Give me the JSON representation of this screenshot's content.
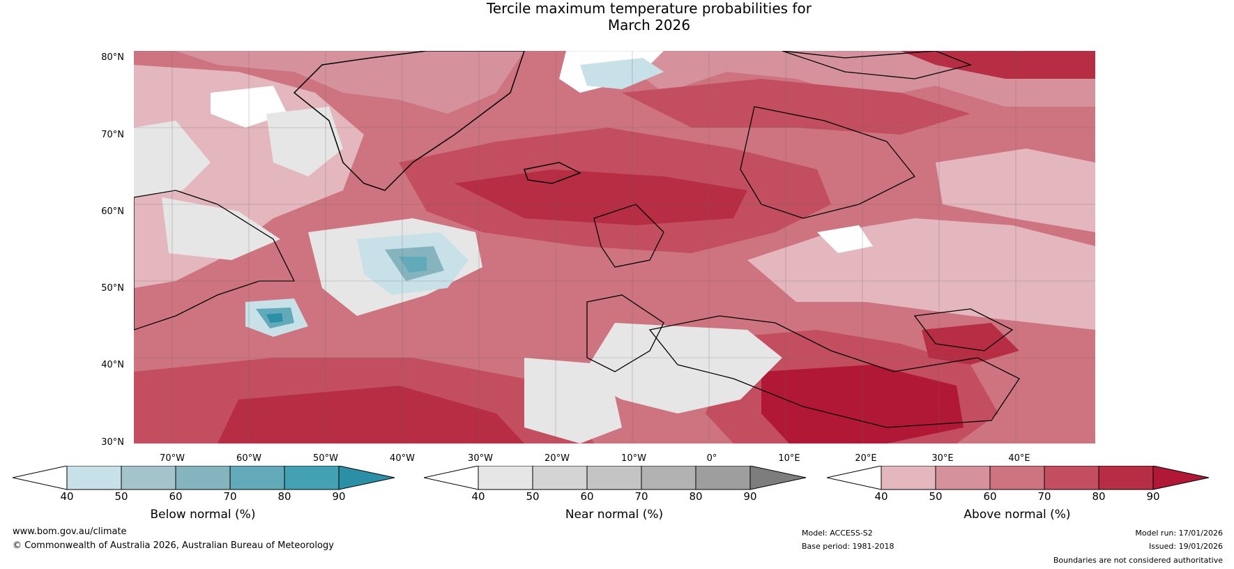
{
  "title": {
    "line1": "Tercile maximum temperature probabilities for",
    "line2": "March 2026"
  },
  "map": {
    "latitudes": [
      "80°N",
      "70°N",
      "60°N",
      "50°N",
      "40°N",
      "30°N"
    ],
    "longitudes": [
      "70°W",
      "60°W",
      "50°W",
      "40°W",
      "30°W",
      "20°W",
      "10°W",
      "0°",
      "10°E",
      "20°E",
      "30°E",
      "40°E"
    ]
  },
  "colorbars": [
    {
      "label": "Below normal (%)",
      "ticks": [
        "40",
        "50",
        "60",
        "70",
        "80",
        "90"
      ],
      "colors": [
        "#ffffff",
        "#c8e0e7",
        "#a3c4cb",
        "#86b4be",
        "#62a9b9",
        "#44a0b3",
        "#2b8fa5"
      ]
    },
    {
      "label": "Near normal (%)",
      "ticks": [
        "40",
        "50",
        "60",
        "70",
        "80",
        "90"
      ],
      "colors": [
        "#ffffff",
        "#e6e6e6",
        "#d4d4d4",
        "#c4c4c4",
        "#b2b2b2",
        "#9e9e9e",
        "#7e7d7d"
      ]
    },
    {
      "label": "Above normal (%)",
      "ticks": [
        "40",
        "50",
        "60",
        "70",
        "80",
        "90"
      ],
      "colors": [
        "#ffffff",
        "#e3b7bd",
        "#d6929c",
        "#cd7480",
        "#c34e5f",
        "#b72d44",
        "#b01835"
      ]
    }
  ],
  "footer": {
    "website": "www.bom.gov.au/climate",
    "copyright": "© Commonwealth of Australia 2026, Australian Bureau of Meteorology",
    "model": "Model: ACCESS-S2",
    "base_period": "Base period: 1981-2018",
    "model_run": "Model run: 17/01/2026",
    "issued": "Issued: 19/01/2026",
    "disclaimer": "Boundaries are not considered authoritative"
  }
}
